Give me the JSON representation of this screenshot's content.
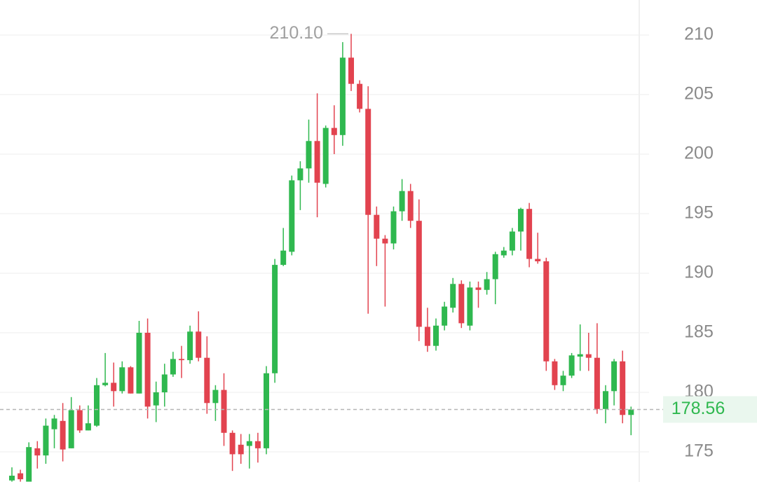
{
  "chart_data": {
    "type": "candlestick",
    "ylim": [
      172.47,
      212.94
    ],
    "yticks": [
      175,
      180,
      185,
      190,
      195,
      200,
      205,
      210
    ],
    "grid": true,
    "up_color": "#2fb84f",
    "down_color": "#e2434f",
    "open": [
      172.6,
      173.2,
      172.5,
      175.3,
      174.7,
      176.9,
      177.6,
      175.3,
      178.5,
      176.8,
      177.2,
      180.6,
      180.8,
      180.1,
      182.1,
      179.9,
      185.0,
      178.9,
      180.0,
      181.5,
      182.8,
      182.7,
      185.1,
      182.9,
      179.1,
      180.2,
      176.6,
      175.6,
      175.5,
      175.9,
      175.3,
      181.6,
      190.7,
      191.8,
      197.8,
      198.8,
      201.1,
      197.5,
      202.2,
      201.6,
      208.1,
      205.9,
      203.8,
      194.9,
      192.9,
      192.5,
      195.2,
      196.9,
      194.4,
      185.5,
      183.9,
      185.6,
      187.1,
      189.1,
      185.6,
      188.8,
      188.6,
      189.5,
      191.5,
      191.9,
      193.5,
      195.4,
      191.2,
      191.0,
      182.6,
      180.6,
      181.4,
      183.0,
      183.2,
      182.9,
      178.6,
      180.1,
      182.6,
      178.1
    ],
    "high": [
      173.7,
      173.5,
      175.8,
      175.9,
      177.8,
      178.1,
      179.1,
      179.6,
      178.9,
      178.9,
      181.2,
      183.3,
      182.5,
      182.6,
      182.2,
      186.0,
      186.2,
      180.9,
      182.4,
      183.4,
      183.9,
      185.6,
      186.8,
      184.7,
      180.6,
      181.6,
      176.8,
      176.5,
      176.5,
      176.6,
      182.2,
      191.2,
      193.8,
      198.2,
      199.4,
      202.9,
      205.1,
      202.4,
      204.1,
      209.4,
      210.1,
      206.2,
      205.7,
      195.6,
      193.2,
      195.6,
      197.9,
      197.5,
      196.2,
      187.1,
      186.2,
      187.6,
      189.6,
      189.4,
      189.3,
      189.3,
      190.1,
      191.8,
      192.2,
      193.8,
      195.5,
      195.9,
      193.4,
      191.3,
      182.8,
      181.8,
      183.3,
      185.7,
      185.0,
      185.8,
      180.6,
      182.8,
      183.5,
      178.8
    ],
    "low": [
      172.5,
      172.5,
      172.5,
      173.6,
      174.0,
      175.3,
      174.2,
      175.3,
      176.6,
      176.8,
      177.1,
      180.5,
      178.8,
      179.9,
      179.9,
      179.9,
      177.8,
      177.5,
      178.8,
      181.3,
      181.2,
      182.4,
      182.6,
      178.2,
      177.6,
      175.5,
      173.4,
      174.0,
      173.6,
      174.1,
      174.8,
      180.8,
      190.6,
      191.5,
      195.3,
      197.6,
      194.7,
      197.2,
      200.0,
      200.7,
      205.3,
      203.5,
      186.6,
      190.6,
      187.2,
      192.0,
      194.4,
      193.8,
      184.3,
      183.4,
      183.5,
      185.2,
      186.7,
      185.4,
      185.2,
      187.1,
      188.2,
      187.4,
      191.3,
      191.5,
      191.9,
      190.5,
      190.8,
      181.8,
      180.2,
      180.1,
      181.2,
      181.8,
      181.8,
      178.2,
      177.4,
      178.9,
      177.4,
      176.4
    ],
    "close": [
      173.0,
      172.7,
      175.4,
      174.7,
      177.2,
      177.8,
      175.2,
      178.5,
      176.8,
      177.4,
      180.6,
      180.8,
      180.1,
      182.1,
      179.9,
      185.0,
      178.8,
      180.0,
      181.5,
      182.8,
      182.7,
      185.1,
      182.9,
      179.1,
      180.2,
      176.6,
      174.8,
      174.8,
      175.9,
      175.3,
      181.6,
      190.7,
      191.9,
      197.8,
      198.8,
      201.1,
      197.6,
      202.2,
      201.6,
      208.1,
      205.9,
      203.8,
      194.9,
      192.9,
      192.5,
      195.2,
      196.9,
      194.4,
      185.5,
      183.9,
      185.6,
      187.2,
      189.1,
      185.8,
      188.8,
      188.6,
      189.5,
      191.6,
      191.9,
      193.5,
      195.4,
      191.2,
      191.0,
      182.6,
      180.6,
      181.4,
      183.1,
      183.2,
      182.9,
      178.6,
      180.1,
      182.6,
      178.1,
      178.56
    ],
    "high_label": {
      "value": 210.1,
      "label": "210.10"
    },
    "last_price": 178.56
  }
}
